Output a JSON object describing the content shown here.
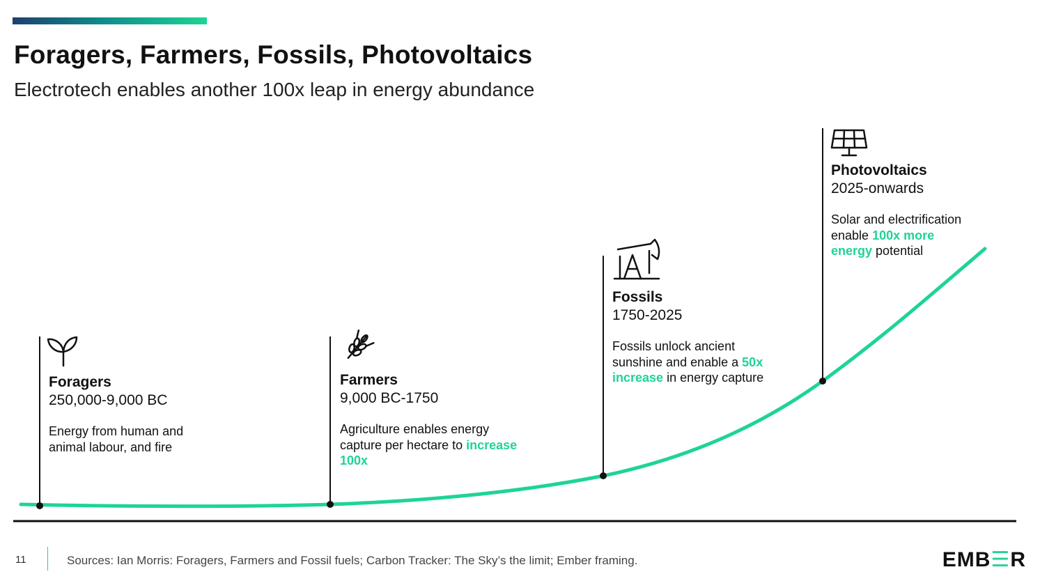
{
  "header": {
    "title": "Foragers, Farmers, Fossils, Photovoltaics",
    "subtitle": "Electrotech enables another 100x leap in energy abundance"
  },
  "colors": {
    "accent": "#1ed495",
    "navy": "#1d3f6e",
    "text": "#111111"
  },
  "stages": [
    {
      "icon": "sprout-icon",
      "name": "Foragers",
      "period": "250,000-9,000 BC",
      "desc_before": "Energy from human and animal labour, and fire",
      "desc_highlight": "",
      "desc_after": ""
    },
    {
      "icon": "wheat-icon",
      "name": "Farmers",
      "period": "9,000 BC-1750",
      "desc_before": "Agriculture enables energy capture per hectare to",
      "desc_highlight": "increase 100x",
      "desc_after": ""
    },
    {
      "icon": "oil-pump-icon",
      "name": "Fossils",
      "period": "1750-2025",
      "desc_before": "Fossils unlock ancient sunshine and enable a",
      "desc_highlight": "50x increase",
      "desc_after": "in energy capture"
    },
    {
      "icon": "solar-panel-icon",
      "name": "Photovoltaics",
      "period": "2025-onwards",
      "desc_before": "Solar and electrification enable",
      "desc_highlight": "100x more energy",
      "desc_after": "potential"
    }
  ],
  "footer": {
    "page_number": "11",
    "sources": "Sources: Ian Morris: Foragers, Farmers and Fossil fuels; Carbon Tracker: The Sky’s the limit; Ember framing.",
    "logo_left": "EMB",
    "logo_mid": "☰",
    "logo_right": "R"
  }
}
